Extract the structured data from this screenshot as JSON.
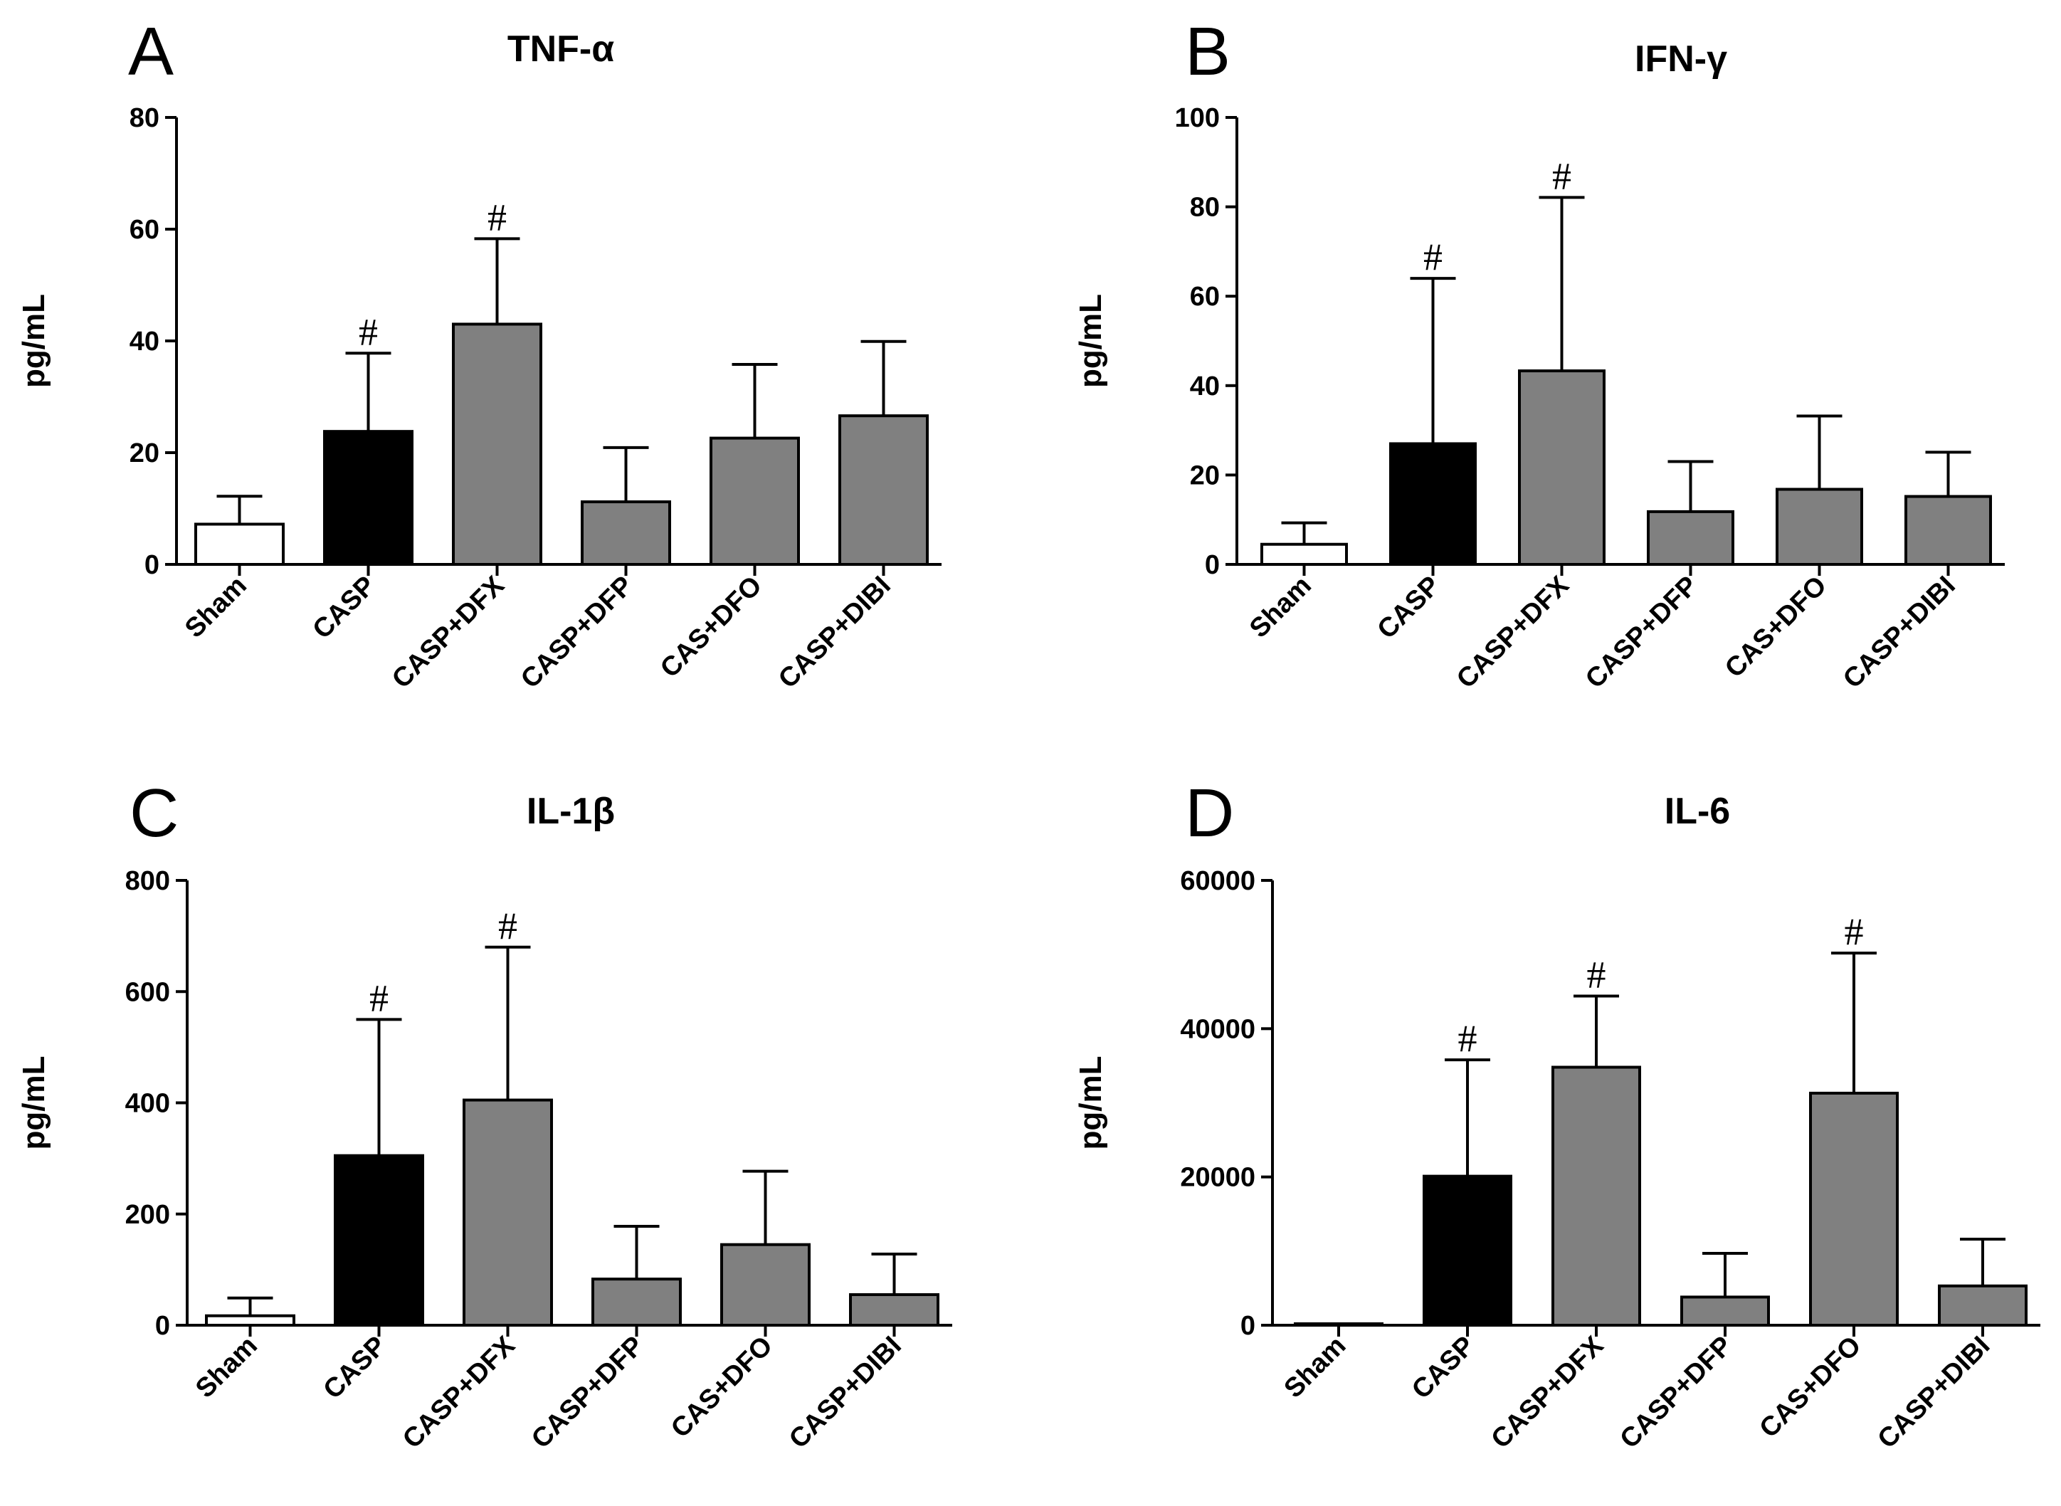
{
  "colors": {
    "Sham": "#ffffff",
    "CASP": "#000000",
    "treatment": "#808080"
  },
  "chart_data": [
    {
      "type": "bar",
      "panel": "A",
      "title": "TNF-α",
      "ylabel": "pg/mL",
      "xlabel": "",
      "ylim": [
        0,
        80
      ],
      "yticks": [
        0,
        20,
        40,
        60,
        80
      ],
      "ytick_labels": [
        "0",
        "20",
        "40",
        "60",
        "80"
      ],
      "categories": [
        "Sham",
        "CASP",
        "CASP+DFX",
        "CASP+DFP",
        "CAS+DFO",
        "CASP+DIBI"
      ],
      "values": [
        7.2,
        23.8,
        43,
        11.2,
        22.6,
        26.6
      ],
      "errors": [
        5,
        14,
        15.3,
        9.7,
        13.2,
        13.3
      ],
      "significance": [
        "",
        "#",
        "#",
        "",
        "",
        ""
      ],
      "fill": [
        "Sham",
        "CASP",
        "treatment",
        "treatment",
        "treatment",
        "treatment"
      ]
    },
    {
      "type": "bar",
      "panel": "B",
      "title": "IFN-γ",
      "ylabel": "pg/mL",
      "xlabel": "",
      "ylim": [
        0,
        100
      ],
      "yticks": [
        0,
        20,
        40,
        60,
        80,
        100
      ],
      "ytick_labels": [
        "0",
        "20",
        "40",
        "60",
        "80",
        "100"
      ],
      "categories": [
        "Sham",
        "CASP",
        "CASP+DFX",
        "CASP+DFP",
        "CAS+DFO",
        "CASP+DIBI"
      ],
      "values": [
        4.5,
        27,
        43.3,
        11.8,
        16.8,
        15.2
      ],
      "errors": [
        4.8,
        37,
        38.8,
        11.2,
        16.4,
        9.9
      ],
      "significance": [
        "",
        "#",
        "#",
        "",
        "",
        ""
      ],
      "fill": [
        "Sham",
        "CASP",
        "treatment",
        "treatment",
        "treatment",
        "treatment"
      ]
    },
    {
      "type": "bar",
      "panel": "C",
      "title": "IL-1β",
      "ylabel": "pg/mL",
      "xlabel": "",
      "ylim": [
        0,
        800
      ],
      "yticks": [
        0,
        200,
        400,
        600,
        800
      ],
      "ytick_labels": [
        "0",
        "200",
        "400",
        "600",
        "800"
      ],
      "categories": [
        "Sham",
        "CASP",
        "CASP+DFX",
        "CASP+DFP",
        "CAS+DFO",
        "CASP+DIBI"
      ],
      "values": [
        17,
        305,
        405,
        83,
        145,
        55
      ],
      "errors": [
        32,
        245,
        275,
        95,
        132,
        73
      ],
      "significance": [
        "",
        "#",
        "#",
        "",
        "",
        ""
      ],
      "fill": [
        "Sham",
        "CASP",
        "treatment",
        "treatment",
        "treatment",
        "treatment"
      ]
    },
    {
      "type": "bar",
      "panel": "D",
      "title": "IL-6",
      "ylabel": "pg/mL",
      "xlabel": "",
      "ylim": [
        0,
        60000
      ],
      "yticks": [
        0,
        20000,
        40000,
        60000
      ],
      "ytick_labels": [
        "0",
        "20000",
        "40000",
        "60000"
      ],
      "categories": [
        "Sham",
        "CASP",
        "CASP+DFX",
        "CASP+DFP",
        "CAS+DFO",
        "CASP+DIBI"
      ],
      "values": [
        200,
        20100,
        34800,
        3800,
        31300,
        5300
      ],
      "errors": [
        0,
        15700,
        9600,
        5900,
        18900,
        6300
      ],
      "significance": [
        "",
        "#",
        "#",
        "",
        "#",
        ""
      ],
      "fill": [
        "Sham",
        "CASP",
        "treatment",
        "treatment",
        "treatment",
        "treatment"
      ]
    }
  ]
}
